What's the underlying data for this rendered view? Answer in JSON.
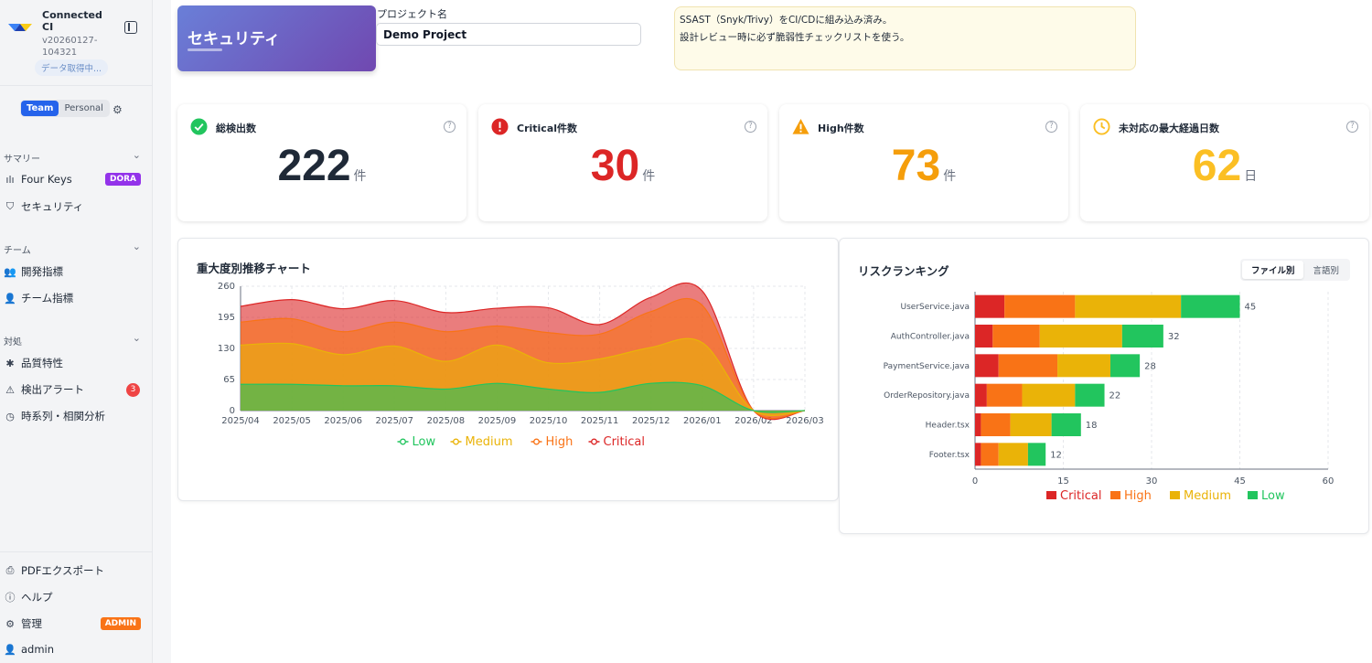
{
  "sidebar": {
    "brand_name": "Connected CI",
    "version": "v20260127-104321",
    "fetch_status": "データ取得中...",
    "toggle_team": "Team",
    "toggle_personal": "Personal",
    "sections": [
      {
        "title": "サマリー",
        "items": [
          {
            "label": "Four Keys",
            "badge": "DORA",
            "icon": "bar-chart-icon"
          },
          {
            "label": "セキュリティ",
            "icon": "shield-icon"
          }
        ]
      },
      {
        "title": "チーム",
        "items": [
          {
            "label": "開発指標",
            "icon": "users-icon"
          },
          {
            "label": "チーム指標",
            "icon": "user-icon"
          }
        ]
      },
      {
        "title": "対処",
        "items": [
          {
            "label": "品質特性",
            "icon": "bug-icon"
          },
          {
            "label": "検出アラート",
            "count": "3",
            "icon": "alert-triangle-icon"
          },
          {
            "label": "時系列・相関分析",
            "icon": "clock-icon"
          }
        ]
      }
    ],
    "footer": [
      {
        "label": "PDFエクスポート",
        "icon": "pdf-export-icon"
      },
      {
        "label": "ヘルプ",
        "icon": "help-icon"
      },
      {
        "label": "管理",
        "badge": "ADMIN",
        "icon": "gear-icon"
      },
      {
        "label": "admin",
        "icon": "user-icon"
      }
    ]
  },
  "header": {
    "title": "セキュリティ",
    "project_label": "プロジェクト名",
    "project_value": "Demo Project",
    "note_lines": [
      "SSAST（Snyk/Trivy）をCI/CDに組み込み済み。",
      "設計レビュー時に必ず脆弱性チェックリストを使う。"
    ]
  },
  "cards": [
    {
      "title": "総検出数",
      "value": "222",
      "unit": "件",
      "color": "#1f2937",
      "icon": "check-circle-icon"
    },
    {
      "title": "Critical件数",
      "value": "30",
      "unit": "件",
      "color": "#dc2626",
      "icon": "error-circle-icon"
    },
    {
      "title": "High件数",
      "value": "73",
      "unit": "件",
      "color": "#f59e0b",
      "icon": "warning-triangle-icon"
    },
    {
      "title": "未対応の最大経過日数",
      "value": "62",
      "unit": "日",
      "color": "#fbbf24",
      "icon": "clock-icon"
    }
  ],
  "colors": {
    "critical": "#dc2626",
    "high": "#f97316",
    "medium": "#eab308",
    "low": "#22c55e"
  },
  "chart_data": [
    {
      "type": "area",
      "title": "重大度別推移チャート",
      "stacked": true,
      "x": [
        "2025/04",
        "2025/05",
        "2025/06",
        "2025/07",
        "2025/08",
        "2025/09",
        "2025/10",
        "2025/11",
        "2025/12",
        "2026/01",
        "2026/02",
        "2026/03"
      ],
      "ylim": [
        0,
        260
      ],
      "yticks": [
        0,
        65,
        130,
        195,
        260
      ],
      "grid": true,
      "legend": "bottom",
      "series": [
        {
          "name": "Low",
          "color": "#22c55e",
          "values": [
            55,
            55,
            52,
            52,
            45,
            57,
            45,
            38,
            57,
            52,
            0,
            0
          ]
        },
        {
          "name": "Medium",
          "color": "#eab308",
          "values": [
            82,
            85,
            65,
            83,
            58,
            80,
            55,
            70,
            75,
            90,
            0,
            0
          ]
        },
        {
          "name": "High",
          "color": "#f97316",
          "values": [
            48,
            52,
            48,
            50,
            62,
            40,
            63,
            52,
            75,
            78,
            0,
            0
          ]
        },
        {
          "name": "Critical",
          "color": "#dc2626",
          "values": [
            33,
            40,
            48,
            45,
            40,
            37,
            52,
            20,
            30,
            30,
            0,
            0
          ]
        }
      ]
    },
    {
      "type": "bar",
      "orientation": "horizontal",
      "stacked": true,
      "title": "リスクランキング",
      "tabs": [
        "ファイル別",
        "言語別"
      ],
      "categories": [
        "UserService.java",
        "AuthController.java",
        "PaymentService.java",
        "OrderRepository.java",
        "Header.tsx",
        "Footer.tsx"
      ],
      "totals": [
        45,
        32,
        28,
        22,
        18,
        12
      ],
      "xlim": [
        0,
        60
      ],
      "xticks": [
        0,
        15,
        30,
        45,
        60
      ],
      "grid": true,
      "legend": "bottom",
      "series": [
        {
          "name": "Critical",
          "color": "#dc2626",
          "values": [
            5,
            3,
            4,
            2,
            1,
            1
          ]
        },
        {
          "name": "High",
          "color": "#f97316",
          "values": [
            12,
            8,
            10,
            6,
            5,
            3
          ]
        },
        {
          "name": "Medium",
          "color": "#eab308",
          "values": [
            18,
            14,
            9,
            9,
            7,
            5
          ]
        },
        {
          "name": "Low",
          "color": "#22c55e",
          "values": [
            10,
            7,
            5,
            5,
            5,
            3
          ]
        }
      ]
    }
  ]
}
